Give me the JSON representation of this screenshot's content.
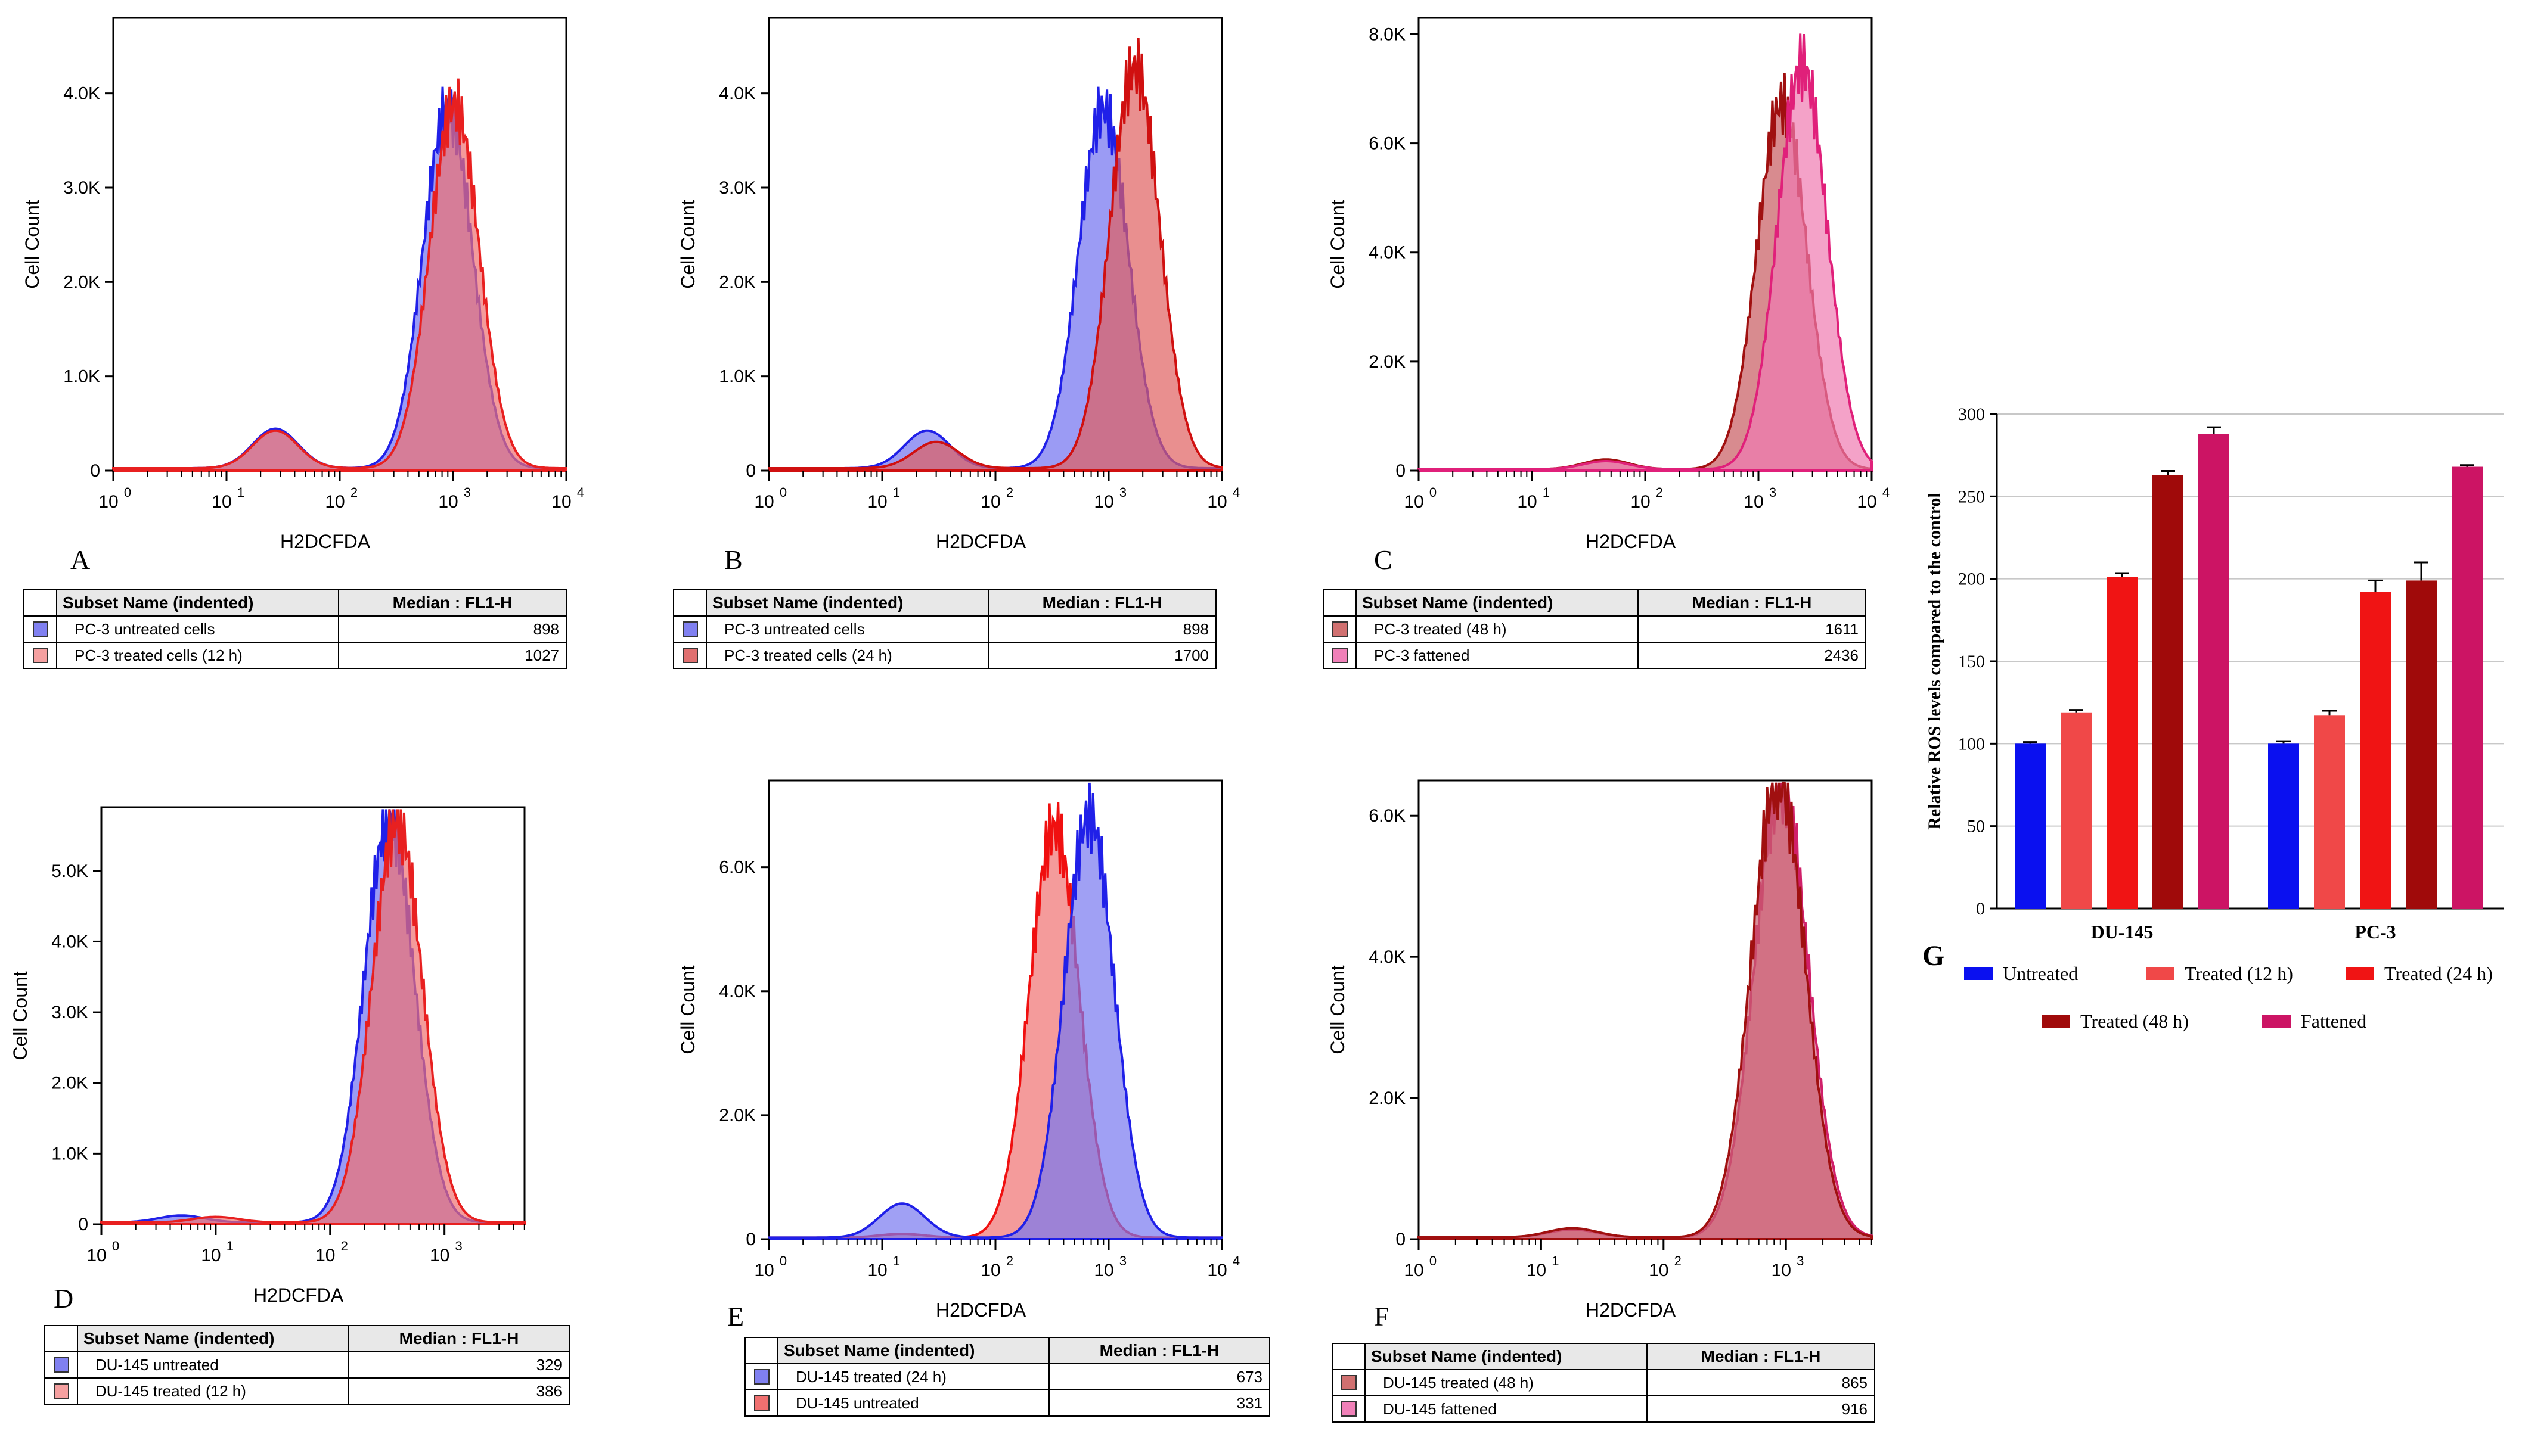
{
  "panels": [
    {
      "id": "A",
      "letter": "A",
      "xlabel": "H2DCFDA",
      "ylabel": "Cell Count",
      "yticks": [
        {
          "v": 0,
          "t": "0"
        },
        {
          "v": 1000,
          "t": "1.0K"
        },
        {
          "v": 2000,
          "t": "2.0K"
        },
        {
          "v": 3000,
          "t": "3.0K"
        },
        {
          "v": 4000,
          "t": "4.0K"
        }
      ],
      "ymax": 4800,
      "xmax_log": 4.0,
      "series": [
        {
          "name": "PC-3 untreated cells",
          "color": "#2020e8",
          "fill": "#7070f0",
          "median": 898,
          "peak": 3800,
          "bump_pos": 27,
          "bump_h": 420
        },
        {
          "name": "PC-3 treated cells (12 h)",
          "color": "#e82020",
          "fill": "#f07070",
          "median": 1027,
          "peak": 3850,
          "bump_pos": 27,
          "bump_h": 400
        }
      ],
      "table": {
        "col1": "Subset Name (indented)",
        "col2": "Median : FL1-H",
        "rows": [
          {
            "name": "PC-3 untreated cells",
            "value": "898",
            "swatch": "#8080f0"
          },
          {
            "name": "PC-3 treated cells (12 h)",
            "value": "1027",
            "swatch": "#f5a0a0"
          }
        ]
      }
    },
    {
      "id": "B",
      "letter": "B",
      "xlabel": "H2DCFDA",
      "ylabel": "Cell Count",
      "yticks": [
        {
          "v": 0,
          "t": "0"
        },
        {
          "v": 1000,
          "t": "1.0K"
        },
        {
          "v": 2000,
          "t": "2.0K"
        },
        {
          "v": 3000,
          "t": "3.0K"
        },
        {
          "v": 4000,
          "t": "4.0K"
        }
      ],
      "ymax": 4800,
      "xmax_log": 4.0,
      "series": [
        {
          "name": "PC-3 untreated cells",
          "color": "#2020e8",
          "fill": "#7070f0",
          "median": 898,
          "peak": 3800,
          "bump_pos": 25,
          "bump_h": 400
        },
        {
          "name": "PC-3 treated cells (24 h)",
          "color": "#d01010",
          "fill": "#e06060",
          "median": 1700,
          "peak": 4250,
          "bump_pos": 30,
          "bump_h": 280
        }
      ],
      "table": {
        "col1": "Subset Name (indented)",
        "col2": "Median : FL1-H",
        "rows": [
          {
            "name": "PC-3 untreated cells",
            "value": "898",
            "swatch": "#8080f0"
          },
          {
            "name": "PC-3 treated cells (24 h)",
            "value": "1700",
            "swatch": "#e07070"
          }
        ]
      }
    },
    {
      "id": "C",
      "letter": "C",
      "xlabel": "H2DCFDA",
      "ylabel": "Cell Count",
      "yticks": [
        {
          "v": 0,
          "t": "0"
        },
        {
          "v": 2000,
          "t": "2.0K"
        },
        {
          "v": 4000,
          "t": "4.0K"
        },
        {
          "v": 6000,
          "t": "6.0K"
        },
        {
          "v": 8000,
          "t": "8.0K"
        }
      ],
      "ymax": 8300,
      "xmax_log": 4.0,
      "series": [
        {
          "name": "PC-3 treated (48 h)",
          "color": "#a01010",
          "fill": "#c85a60",
          "median": 1611,
          "peak": 6700,
          "bump_pos": 45,
          "bump_h": 180
        },
        {
          "name": "PC-3 fattened",
          "color": "#e0207a",
          "fill": "#f07ab0",
          "median": 2436,
          "peak": 7400,
          "bump_pos": 45,
          "bump_h": 150
        }
      ],
      "table": {
        "col1": "Subset Name (indented)",
        "col2": "Median : FL1-H",
        "rows": [
          {
            "name": "PC-3 treated (48 h)",
            "value": "1611",
            "swatch": "#d07070"
          },
          {
            "name": "PC-3 fattened",
            "value": "2436",
            "swatch": "#f080b8"
          }
        ]
      }
    },
    {
      "id": "D",
      "letter": "D",
      "xlabel": "H2DCFDA",
      "ylabel": "Cell Count",
      "yticks": [
        {
          "v": 0,
          "t": "0"
        },
        {
          "v": 1000,
          "t": "1.0K"
        },
        {
          "v": 2000,
          "t": "2.0K"
        },
        {
          "v": 3000,
          "t": "3.0K"
        },
        {
          "v": 4000,
          "t": "4.0K"
        },
        {
          "v": 5000,
          "t": "5.0K"
        }
      ],
      "ymax": 5900,
      "xmax_log": 3.7,
      "series": [
        {
          "name": "DU-145 untreated",
          "color": "#2020e8",
          "fill": "#7070f0",
          "median": 329,
          "peak": 5700,
          "bump_pos": 5,
          "bump_h": 100
        },
        {
          "name": "DU-145 treated (12 h)",
          "color": "#e82020",
          "fill": "#f07070",
          "median": 386,
          "peak": 5650,
          "bump_pos": 10,
          "bump_h": 80
        }
      ],
      "table": {
        "col1": "Subset Name (indented)",
        "col2": "Median : FL1-H",
        "rows": [
          {
            "name": "DU-145 untreated",
            "value": "329",
            "swatch": "#8080f0"
          },
          {
            "name": "DU-145 treated (12 h)",
            "value": "386",
            "swatch": "#f5a0a0"
          }
        ]
      }
    },
    {
      "id": "E",
      "letter": "E",
      "xlabel": "H2DCFDA",
      "ylabel": "Cell Count",
      "yticks": [
        {
          "v": 0,
          "t": "0"
        },
        {
          "v": 2000,
          "t": "2.0K"
        },
        {
          "v": 4000,
          "t": "4.0K"
        },
        {
          "v": 6000,
          "t": "6.0K"
        }
      ],
      "ymax": 7400,
      "xmax_log": 4.0,
      "series": [
        {
          "name": "DU-145 untreated",
          "color": "#f01010",
          "fill": "#f07070",
          "median": 331,
          "peak": 6600,
          "bump_pos": 15,
          "bump_h": 60
        },
        {
          "name": "DU-145 treated (24 h)",
          "color": "#2020e8",
          "fill": "#7878f0",
          "median": 673,
          "peak": 6800,
          "bump_pos": 15,
          "bump_h": 550
        }
      ],
      "table": {
        "col1": "Subset Name (indented)",
        "col2": "Median : FL1-H",
        "rows": [
          {
            "name": "DU-145 treated (24 h)",
            "value": "673",
            "swatch": "#8080f0"
          },
          {
            "name": "DU-145 untreated",
            "value": "331",
            "swatch": "#f07070"
          }
        ]
      }
    },
    {
      "id": "F",
      "letter": "F",
      "xlabel": "H2DCFDA",
      "ylabel": "Cell Count",
      "yticks": [
        {
          "v": 0,
          "t": "0"
        },
        {
          "v": 2000,
          "t": "2.0K"
        },
        {
          "v": 4000,
          "t": "4.0K"
        },
        {
          "v": 6000,
          "t": "6.0K"
        }
      ],
      "ymax": 6500,
      "xmax_log": 3.7,
      "series": [
        {
          "name": "DU-145 fattened",
          "color": "#d0206a",
          "fill": "#e07090",
          "median": 916,
          "peak": 6400,
          "bump_pos": 18,
          "bump_h": 110
        },
        {
          "name": "DU-145 treated (48 h)",
          "color": "#a01010",
          "fill": "#c86070",
          "median": 865,
          "peak": 6500,
          "bump_pos": 18,
          "bump_h": 130
        }
      ],
      "table": {
        "col1": "Subset Name (indented)",
        "col2": "Median : FL1-H",
        "rows": [
          {
            "name": "DU-145 treated (48 h)",
            "value": "865",
            "swatch": "#d07070"
          },
          {
            "name": "DU-145 fattened",
            "value": "916",
            "swatch": "#f080b8"
          }
        ]
      }
    }
  ],
  "chart_data": {
    "type": "bar",
    "letter": "G",
    "ylabel": "Relative ROS levels compared to the control",
    "categories": [
      "DU-145",
      "PC-3"
    ],
    "ylim": [
      0,
      300
    ],
    "yticks": [
      0,
      50,
      100,
      150,
      200,
      250,
      300
    ],
    "series": [
      {
        "name": "Untreated",
        "color": "#0a10f0",
        "values": [
          100,
          100
        ],
        "errors": [
          1,
          1.5
        ]
      },
      {
        "name": "Treated (12 h)",
        "color": "#f04848",
        "values": [
          119,
          117
        ],
        "errors": [
          1.5,
          3
        ]
      },
      {
        "name": "Treated (24 h)",
        "color": "#f01414",
        "values": [
          201,
          192
        ],
        "errors": [
          2.5,
          7
        ]
      },
      {
        "name": "Treated (48 h)",
        "color": "#a00a0a",
        "values": [
          263,
          199
        ],
        "errors": [
          2.5,
          11
        ]
      },
      {
        "name": "Fattened",
        "color": "#cc1464",
        "values": [
          288,
          268
        ],
        "errors": [
          4,
          1
        ]
      }
    ]
  }
}
